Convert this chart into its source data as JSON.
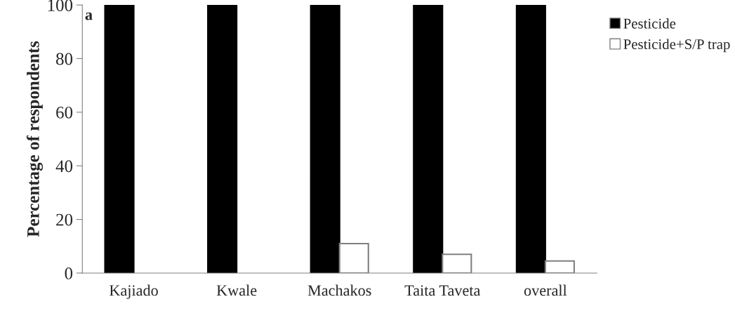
{
  "chart_data": {
    "type": "bar",
    "ylabel": "Percentage of respondents",
    "categories": [
      "Kajiado",
      "Kwale",
      "Machakos",
      "Taita Taveta",
      "overall"
    ],
    "series": [
      {
        "name": "Pesticide",
        "color": "#000000",
        "values": [
          100,
          100,
          100,
          100,
          100
        ]
      },
      {
        "name": "Pesticide+S/P trap",
        "color": "#ffffff",
        "values": [
          0,
          0,
          11,
          7,
          4.5
        ]
      }
    ],
    "ylim": [
      0,
      100
    ],
    "yticks": [
      0,
      20,
      40,
      60,
      80,
      100
    ],
    "grid": false,
    "legend": "top right",
    "annotations": [
      "a"
    ]
  }
}
